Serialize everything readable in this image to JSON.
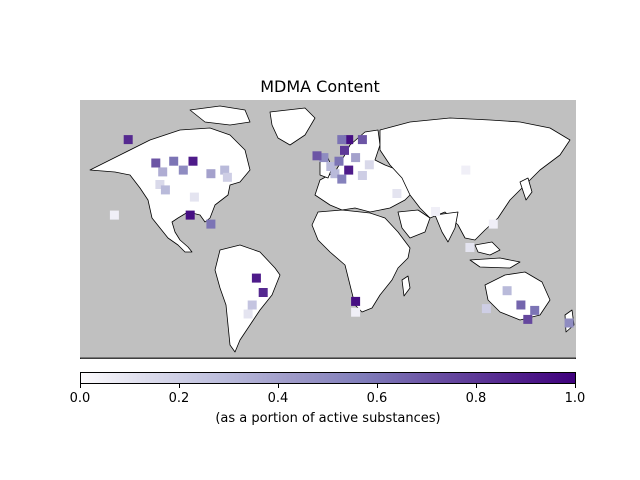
{
  "title": "MDMA Content",
  "colorbar": {
    "label": "(as a portion of active substances)",
    "ticks": [
      "0.0",
      "0.2",
      "0.4",
      "0.6",
      "0.8",
      "1.0"
    ],
    "colors": [
      "#fcfbfd",
      "#dadaeb",
      "#bcbddc",
      "#9e9ac8",
      "#807dba",
      "#6a51a3",
      "#54278f",
      "#3f007d"
    ]
  },
  "colors": {
    "ocean": "#c0c0c0",
    "land": "#ffffff",
    "coast": "#000000"
  },
  "chart_data": {
    "type": "heatmap",
    "title": "MDMA Content",
    "colorbar_label": "(as a portion of active substances)",
    "colorbar_range": [
      0,
      1
    ],
    "cells": [
      {
        "lon": -145,
        "lat": 62,
        "value": 0.85
      },
      {
        "lon": -125,
        "lat": 49,
        "value": 0.7
      },
      {
        "lon": -120,
        "lat": 44,
        "value": 0.35
      },
      {
        "lon": -112,
        "lat": 50,
        "value": 0.6
      },
      {
        "lon": -105,
        "lat": 45,
        "value": 0.5
      },
      {
        "lon": -98,
        "lat": 50,
        "value": 0.9
      },
      {
        "lon": -122,
        "lat": 37,
        "value": 0.15
      },
      {
        "lon": -118,
        "lat": 34,
        "value": 0.3
      },
      {
        "lon": -85,
        "lat": 43,
        "value": 0.4
      },
      {
        "lon": -75,
        "lat": 45,
        "value": 0.3
      },
      {
        "lon": -73,
        "lat": 41,
        "value": 0.2
      },
      {
        "lon": -97,
        "lat": 30,
        "value": 0.1
      },
      {
        "lon": -100,
        "lat": 20,
        "value": 0.95
      },
      {
        "lon": -85,
        "lat": 15,
        "value": 0.6
      },
      {
        "lon": -155,
        "lat": 20,
        "value": 0.05
      },
      {
        "lon": -52,
        "lat": -15,
        "value": 0.9
      },
      {
        "lon": -47,
        "lat": -23,
        "value": 0.85
      },
      {
        "lon": -55,
        "lat": -30,
        "value": 0.25
      },
      {
        "lon": -58,
        "lat": -35,
        "value": 0.1
      },
      {
        "lon": -3,
        "lat": 52,
        "value": 0.5
      },
      {
        "lon": -8,
        "lat": 53,
        "value": 0.7
      },
      {
        "lon": 2,
        "lat": 47,
        "value": 0.3
      },
      {
        "lon": 8,
        "lat": 50,
        "value": 0.6
      },
      {
        "lon": 12,
        "lat": 56,
        "value": 0.8
      },
      {
        "lon": 15,
        "lat": 62,
        "value": 0.95
      },
      {
        "lon": 25,
        "lat": 62,
        "value": 0.7
      },
      {
        "lon": 10,
        "lat": 62,
        "value": 0.6
      },
      {
        "lon": 20,
        "lat": 52,
        "value": 0.4
      },
      {
        "lon": 15,
        "lat": 45,
        "value": 0.9
      },
      {
        "lon": 5,
        "lat": 43,
        "value": 0.3
      },
      {
        "lon": 25,
        "lat": 42,
        "value": 0.2
      },
      {
        "lon": 30,
        "lat": 48,
        "value": 0.15
      },
      {
        "lon": 10,
        "lat": 40,
        "value": 0.55
      },
      {
        "lon": 20,
        "lat": -28,
        "value": 0.95
      },
      {
        "lon": 20,
        "lat": -34,
        "value": 0.05
      },
      {
        "lon": 50,
        "lat": 32,
        "value": 0.1
      },
      {
        "lon": 78,
        "lat": 22,
        "value": 0.05
      },
      {
        "lon": 100,
        "lat": 45,
        "value": 0.05
      },
      {
        "lon": 103,
        "lat": 2,
        "value": 0.1
      },
      {
        "lon": 120,
        "lat": 15,
        "value": 0.05
      },
      {
        "lon": 140,
        "lat": -30,
        "value": 0.65
      },
      {
        "lon": 150,
        "lat": -33,
        "value": 0.6
      },
      {
        "lon": 145,
        "lat": -38,
        "value": 0.75
      },
      {
        "lon": 130,
        "lat": -22,
        "value": 0.3
      },
      {
        "lon": 115,
        "lat": -32,
        "value": 0.2
      },
      {
        "lon": 175,
        "lat": -40,
        "value": 0.5
      }
    ]
  }
}
